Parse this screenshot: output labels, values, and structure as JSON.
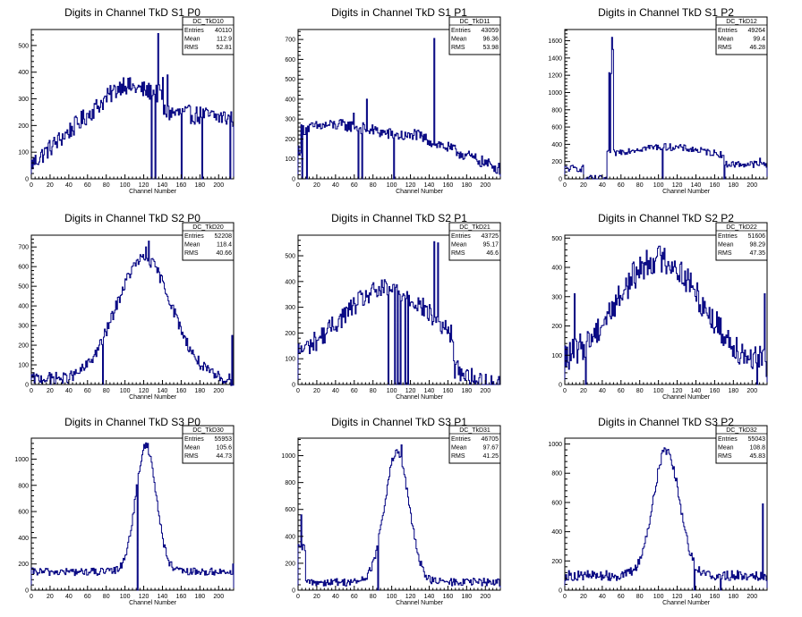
{
  "chart_data": [
    {
      "type": "histogram",
      "id": "s1p0",
      "title": "Digits in Channel TkD S1 P0",
      "xlabel": "Channel Number",
      "xlim": [
        0,
        216
      ],
      "ylim": [
        0,
        560
      ],
      "xticks": [
        0,
        20,
        40,
        60,
        80,
        100,
        120,
        140,
        160,
        180,
        200
      ],
      "yticks": [
        0,
        100,
        200,
        300,
        400,
        500
      ],
      "stats": {
        "name": "DC_TkD10",
        "entries": "40110",
        "mean": "112.9",
        "rms": "52.81"
      },
      "shape": "s1p0"
    },
    {
      "type": "histogram",
      "id": "s1p1",
      "title": "Digits in Channel TkD S1 P1",
      "xlabel": "Channel Number",
      "xlim": [
        0,
        216
      ],
      "ylim": [
        0,
        750
      ],
      "xticks": [
        0,
        20,
        40,
        60,
        80,
        100,
        120,
        140,
        160,
        180,
        200
      ],
      "yticks": [
        0,
        100,
        200,
        300,
        400,
        500,
        600,
        700
      ],
      "stats": {
        "name": "DC_TkD11",
        "entries": "43059",
        "mean": "96.36",
        "rms": "53.98"
      },
      "shape": "s1p1"
    },
    {
      "type": "histogram",
      "id": "s1p2",
      "title": "Digits in Channel TkD S1 P2",
      "xlabel": "Channel Number",
      "xlim": [
        0,
        216
      ],
      "ylim": [
        0,
        1730
      ],
      "xticks": [
        0,
        20,
        40,
        60,
        80,
        100,
        120,
        140,
        160,
        180,
        200
      ],
      "yticks": [
        0,
        200,
        400,
        600,
        800,
        1000,
        1200,
        1400,
        1600
      ],
      "stats": {
        "name": "DC_TkD12",
        "entries": "49264",
        "mean": "99.4",
        "rms": "46.28"
      },
      "shape": "s1p2"
    },
    {
      "type": "histogram",
      "id": "s2p0",
      "title": "Digits in Channel TkD S2 P0",
      "xlabel": "Channel Number",
      "xlim": [
        0,
        216
      ],
      "ylim": [
        0,
        760
      ],
      "xticks": [
        0,
        20,
        40,
        60,
        80,
        100,
        120,
        140,
        160,
        180,
        200
      ],
      "yticks": [
        0,
        100,
        200,
        300,
        400,
        500,
        600,
        700
      ],
      "stats": {
        "name": "DC_TkD20",
        "entries": "52208",
        "mean": "118.4",
        "rms": "40.66"
      },
      "shape": "s2p0"
    },
    {
      "type": "histogram",
      "id": "s2p1",
      "title": "Digits in Channel TkD S2 P1",
      "xlabel": "Channel Number",
      "xlim": [
        0,
        216
      ],
      "ylim": [
        0,
        580
      ],
      "xticks": [
        0,
        20,
        40,
        60,
        80,
        100,
        120,
        140,
        160,
        180,
        200
      ],
      "yticks": [
        0,
        100,
        200,
        300,
        400,
        500
      ],
      "stats": {
        "name": "DC_TkD21",
        "entries": "43725",
        "mean": "95.17",
        "rms": "46.6"
      },
      "shape": "s2p1"
    },
    {
      "type": "histogram",
      "id": "s2p2",
      "title": "Digits in Channel TkD S2 P2",
      "xlabel": "Channel Number",
      "xlim": [
        0,
        216
      ],
      "ylim": [
        0,
        510
      ],
      "xticks": [
        0,
        20,
        40,
        60,
        80,
        100,
        120,
        140,
        160,
        180,
        200
      ],
      "yticks": [
        0,
        100,
        200,
        300,
        400,
        500
      ],
      "stats": {
        "name": "DC_TkD22",
        "entries": "51606",
        "mean": "98.29",
        "rms": "47.35"
      },
      "shape": "s2p2"
    },
    {
      "type": "histogram",
      "id": "s3p0",
      "title": "Digits in Channel TkD S3 P0",
      "xlabel": "Channel Number",
      "xlim": [
        0,
        216
      ],
      "ylim": [
        0,
        1160
      ],
      "xticks": [
        0,
        20,
        40,
        60,
        80,
        100,
        120,
        140,
        160,
        180,
        200
      ],
      "yticks": [
        0,
        200,
        400,
        600,
        800,
        1000
      ],
      "stats": {
        "name": "DC_TkD30",
        "entries": "55953",
        "mean": "105.6",
        "rms": "44.73"
      },
      "shape": "s3p0"
    },
    {
      "type": "histogram",
      "id": "s3p1",
      "title": "Digits in Channel TkD S3 P1",
      "xlabel": "Channel Number",
      "xlim": [
        0,
        216
      ],
      "ylim": [
        0,
        1130
      ],
      "xticks": [
        0,
        20,
        40,
        60,
        80,
        100,
        120,
        140,
        160,
        180,
        200
      ],
      "yticks": [
        0,
        200,
        400,
        600,
        800,
        1000
      ],
      "stats": {
        "name": "DC_TkD31",
        "entries": "46705",
        "mean": "97.67",
        "rms": "41.25"
      },
      "shape": "s3p1"
    },
    {
      "type": "histogram",
      "id": "s3p2",
      "title": "Digits in Channel TkD S3 P2",
      "xlabel": "Channel Number",
      "xlim": [
        0,
        216
      ],
      "ylim": [
        0,
        1040
      ],
      "xticks": [
        0,
        20,
        40,
        60,
        80,
        100,
        120,
        140,
        160,
        180,
        200
      ],
      "yticks": [
        0,
        200,
        400,
        600,
        800,
        1000
      ],
      "stats": {
        "name": "DC_TkD32",
        "entries": "55043",
        "mean": "108.8",
        "rms": "45.83"
      },
      "shape": "s3p2"
    }
  ],
  "colors": {
    "histogram_line": "#000080",
    "frame": "#000000",
    "background": "#ffffff"
  }
}
